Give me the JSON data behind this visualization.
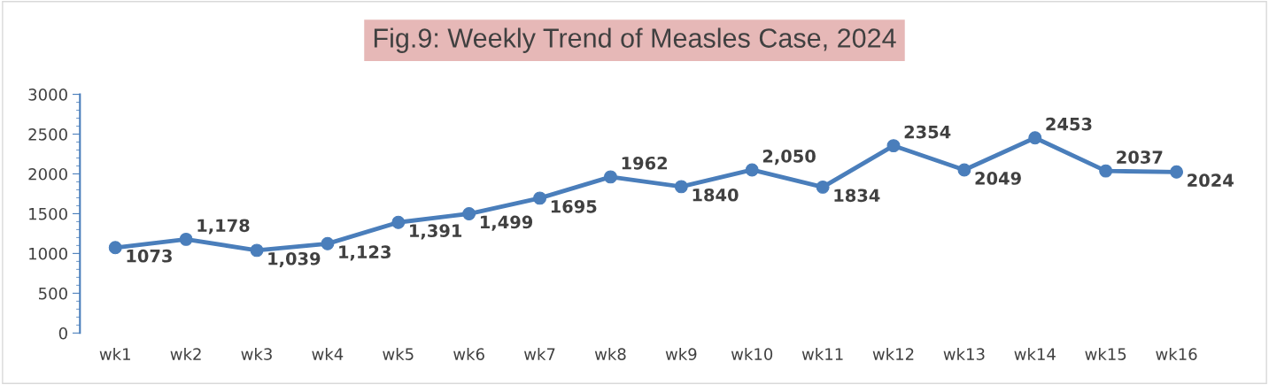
{
  "chart_data": {
    "type": "line",
    "title": "Fig.9: Weekly Trend of Measles Case, 2024",
    "categories": [
      "wk1",
      "wk2",
      "wk3",
      "wk4",
      "wk5",
      "wk6",
      "wk7",
      "wk8",
      "wk9",
      "wk10",
      "wk11",
      "wk12",
      "wk13",
      "wk14",
      "wk15",
      "wk16"
    ],
    "series": [
      {
        "color": "#4a7ebb",
        "values": [
          1073,
          1178,
          1039,
          1123,
          1391,
          1499,
          1695,
          1962,
          1840,
          2050,
          1834,
          2354,
          2049,
          2453,
          2037,
          2024
        ],
        "value_labels": [
          "1073",
          "1,178",
          "1,039",
          "1,123",
          "1,391",
          "1,499",
          "1695",
          "1962",
          "1840",
          "2,050",
          "1834",
          "2354",
          "2049",
          "2453",
          "2037",
          "2024"
        ]
      }
    ],
    "ylim": [
      0,
      3000
    ],
    "yticks": [
      0,
      500,
      1000,
      1500,
      2000,
      2500,
      3000
    ],
    "grid": false,
    "legend": false,
    "marker": "circle",
    "line_style": "solid"
  }
}
